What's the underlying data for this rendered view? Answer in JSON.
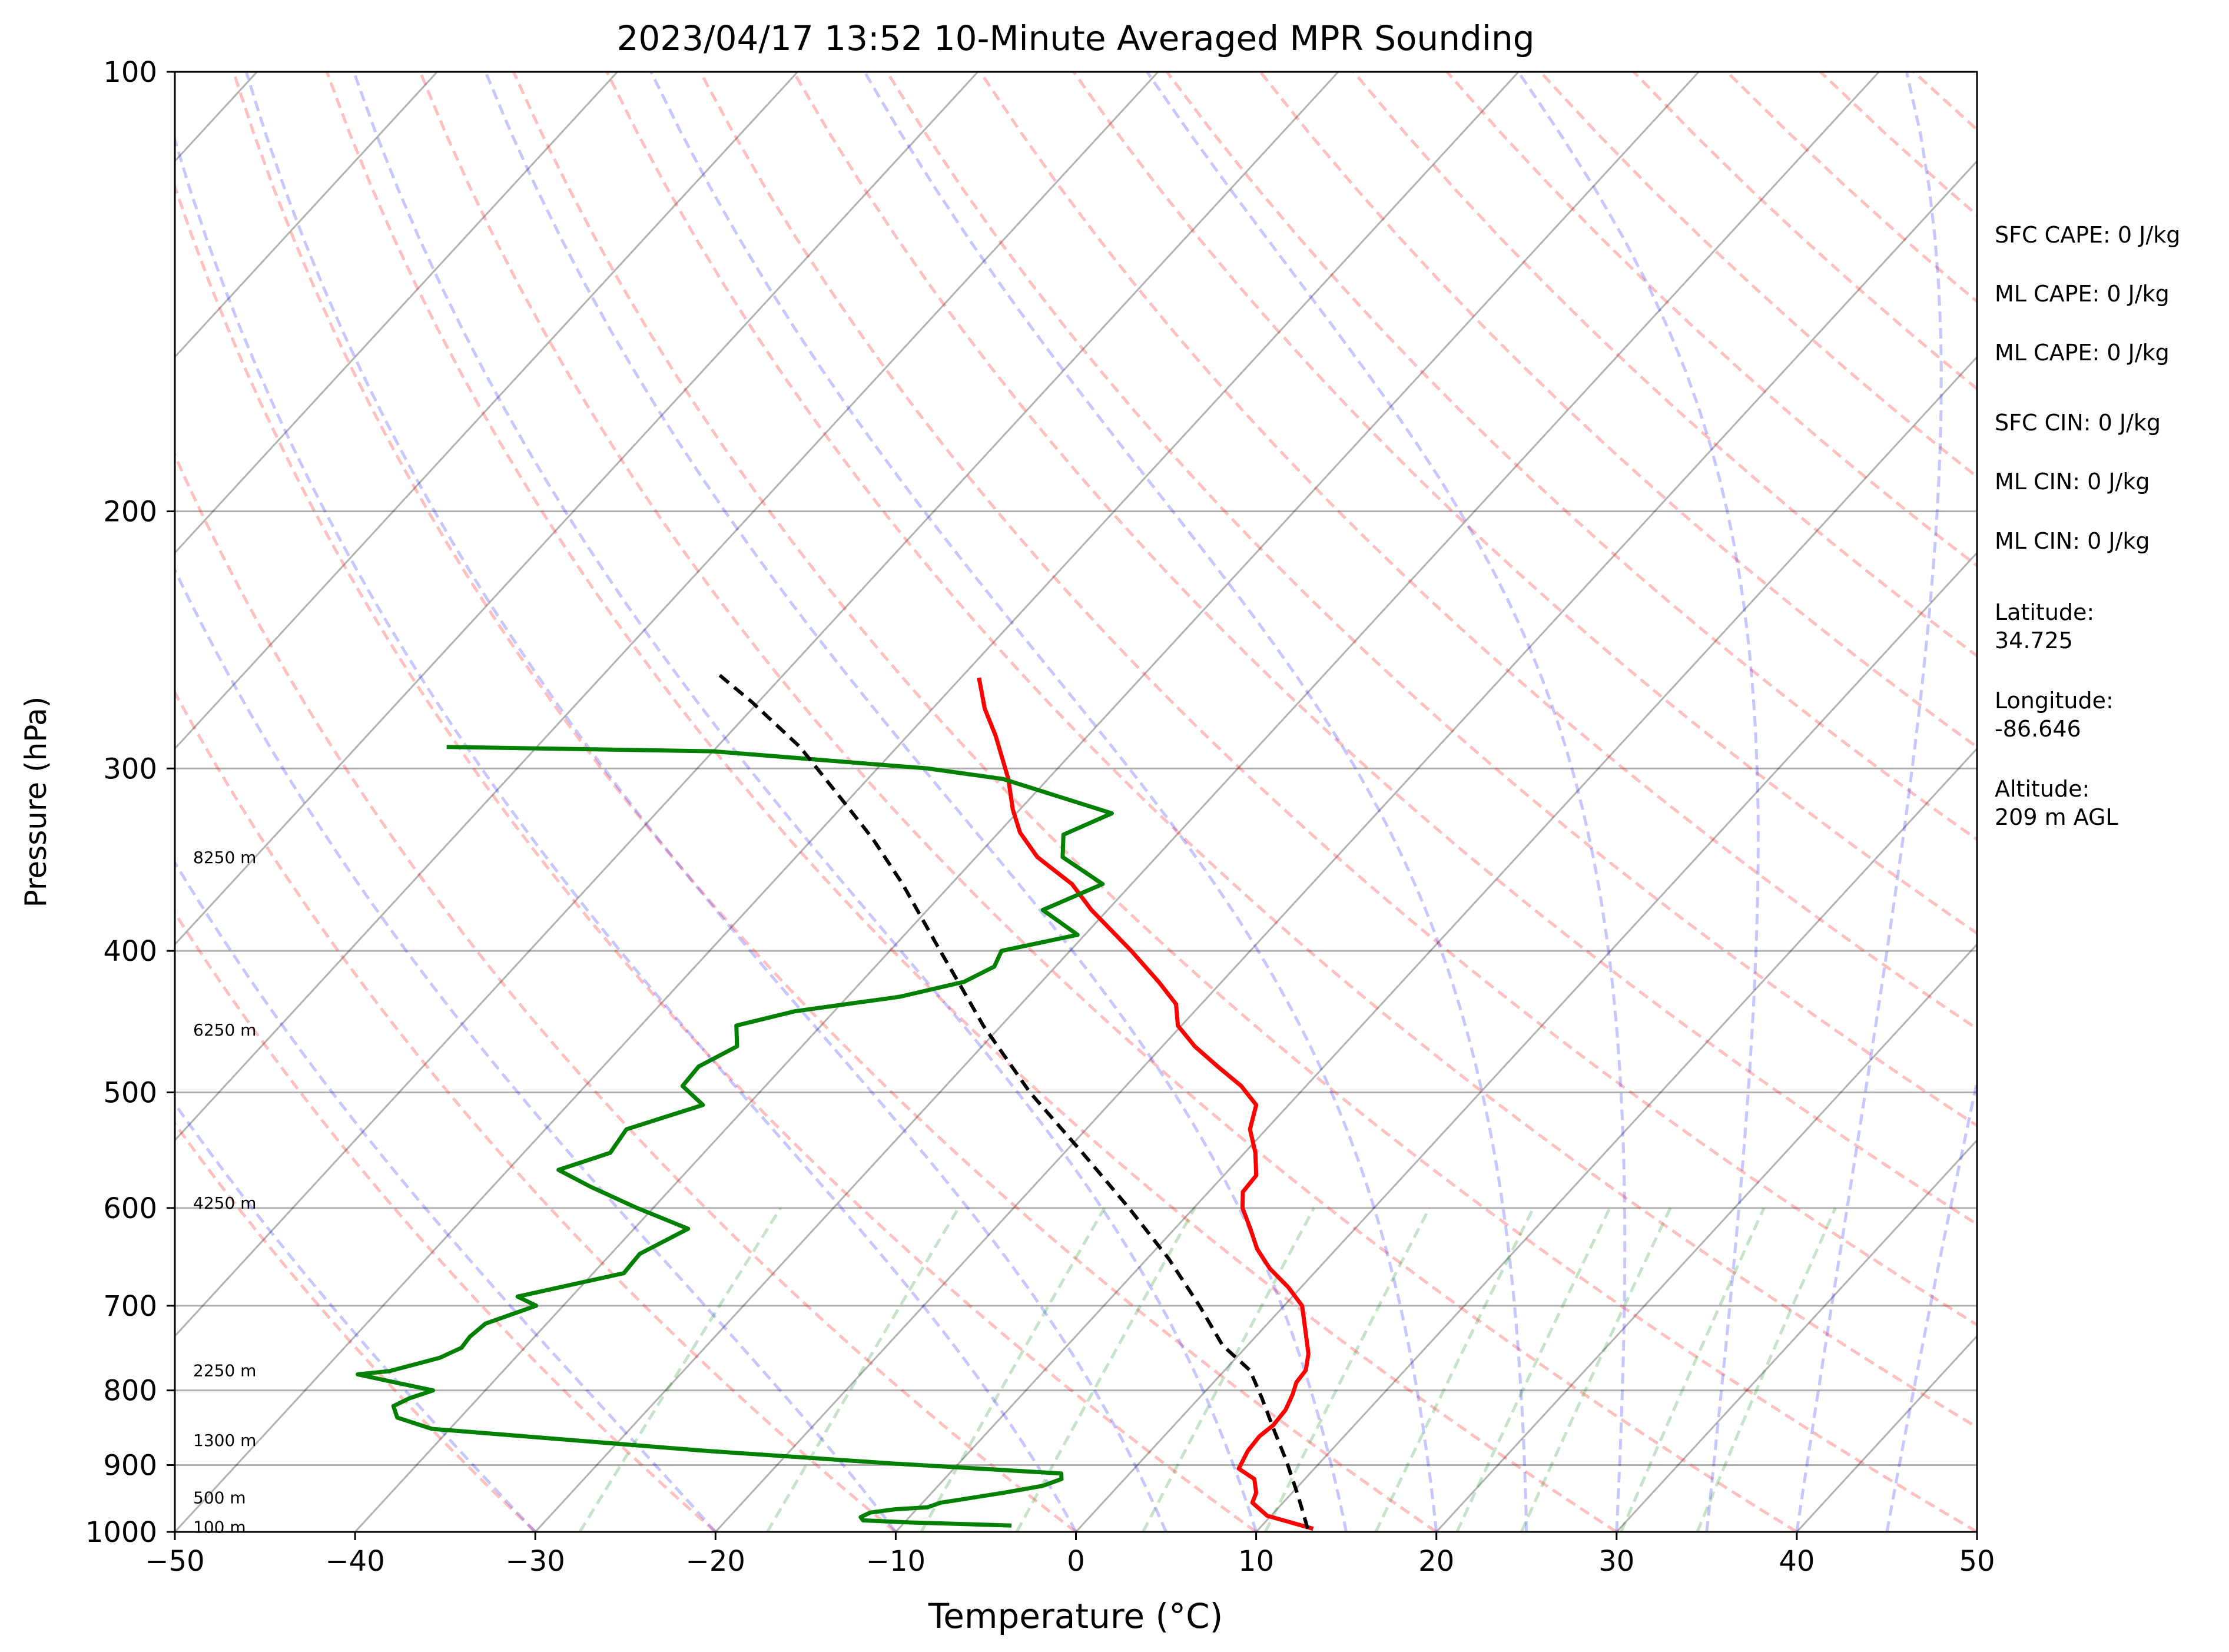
{
  "chart_data": {
    "type": "line",
    "subtype": "skew-T log-p sounding",
    "title": "2023/04/17 13:52 10-Minute Averaged MPR Sounding",
    "xlabel": "Temperature (°C)",
    "ylabel": "Pressure (hPa)",
    "xlim": [
      -50,
      50
    ],
    "ylim": [
      1000,
      100
    ],
    "y_scale": "log",
    "x_ticks": [
      -50,
      -40,
      -30,
      -20,
      -10,
      0,
      10,
      20,
      30,
      40,
      50
    ],
    "x_tick_labels": [
      "−50",
      "−40",
      "−30",
      "−20",
      "−10",
      "0",
      "10",
      "20",
      "30",
      "40",
      "50"
    ],
    "y_ticks": [
      100,
      200,
      300,
      400,
      500,
      600,
      700,
      800,
      900,
      1000
    ],
    "y_tick_labels": [
      "100",
      "200",
      "300",
      "400",
      "500",
      "600",
      "700",
      "800",
      "900",
      "1000"
    ],
    "grid": true,
    "series": [
      {
        "key": "temperature",
        "color": "#ff0000",
        "points": [
          [
            13.0,
            995
          ],
          [
            9.8,
            975
          ],
          [
            8.3,
            955
          ],
          [
            8.0,
            940
          ],
          [
            7.2,
            920
          ],
          [
            5.8,
            905
          ],
          [
            5.4,
            880
          ],
          [
            5.3,
            860
          ],
          [
            5.5,
            845
          ],
          [
            5.4,
            825
          ],
          [
            5.0,
            805
          ],
          [
            4.6,
            790
          ],
          [
            4.5,
            775
          ],
          [
            3.8,
            755
          ],
          [
            2.3,
            725
          ],
          [
            1.0,
            700
          ],
          [
            -0.7,
            680
          ],
          [
            -2.7,
            660
          ],
          [
            -4.4,
            640
          ],
          [
            -5.8,
            620
          ],
          [
            -7.3,
            600
          ],
          [
            -8.1,
            585
          ],
          [
            -8.2,
            570
          ],
          [
            -9.4,
            550
          ],
          [
            -10.9,
            530
          ],
          [
            -11.8,
            510
          ],
          [
            -13.6,
            495
          ],
          [
            -15.9,
            480
          ],
          [
            -18.2,
            465
          ],
          [
            -20.2,
            450
          ],
          [
            -21.4,
            435
          ],
          [
            -23.5,
            420
          ],
          [
            -26.6,
            400
          ],
          [
            -30.9,
            375
          ],
          [
            -33.3,
            360
          ],
          [
            -36.6,
            345
          ],
          [
            -38.8,
            332
          ],
          [
            -40.4,
            320
          ],
          [
            -42.2,
            305
          ],
          [
            -45.1,
            285
          ],
          [
            -47.1,
            273
          ],
          [
            -49.0,
            260
          ]
        ]
      },
      {
        "key": "dewpoint",
        "color": "#008000",
        "points": [
          [
            -3.9,
            990
          ],
          [
            -9.9,
            985
          ],
          [
            -12.4,
            982
          ],
          [
            -12.7,
            977
          ],
          [
            -12.4,
            970
          ],
          [
            -11.2,
            965
          ],
          [
            -9.5,
            962
          ],
          [
            -9.0,
            955
          ],
          [
            -8.0,
            950
          ],
          [
            -6.0,
            940
          ],
          [
            -4.2,
            930
          ],
          [
            -3.5,
            920
          ],
          [
            -3.8,
            912
          ],
          [
            -13.5,
            898
          ],
          [
            -24.7,
            880
          ],
          [
            -41.0,
            850
          ],
          [
            -43.5,
            835
          ],
          [
            -44.3,
            820
          ],
          [
            -43.8,
            810
          ],
          [
            -42.9,
            800
          ],
          [
            -45.9,
            788
          ],
          [
            -47.9,
            780
          ],
          [
            -46.3,
            776
          ],
          [
            -44.2,
            760
          ],
          [
            -43.5,
            748
          ],
          [
            -43.6,
            735
          ],
          [
            -43.4,
            720
          ],
          [
            -41.5,
            700
          ],
          [
            -43.0,
            690
          ],
          [
            -38.3,
            665
          ],
          [
            -38.4,
            645
          ],
          [
            -37.0,
            620
          ],
          [
            -40.9,
            600
          ],
          [
            -44.6,
            580
          ],
          [
            -47.2,
            565
          ],
          [
            -45.2,
            550
          ],
          [
            -45.5,
            530
          ],
          [
            -42.5,
            510
          ],
          [
            -44.6,
            495
          ],
          [
            -44.7,
            480
          ],
          [
            -43.6,
            465
          ],
          [
            -44.7,
            450
          ],
          [
            -42.2,
            440
          ],
          [
            -37.1,
            430
          ],
          [
            -34.3,
            420
          ],
          [
            -33.4,
            410
          ],
          [
            -33.8,
            400
          ],
          [
            -30.4,
            390
          ],
          [
            -33.6,
            375
          ],
          [
            -31.6,
            360
          ],
          [
            -35.2,
            345
          ],
          [
            -36.3,
            333
          ],
          [
            -34.7,
            322
          ],
          [
            -42.5,
            305
          ],
          [
            -47.2,
            300
          ],
          [
            -60.0,
            292
          ],
          [
            -75.0,
            290
          ]
        ]
      },
      {
        "key": "parcel",
        "color": "#000000",
        "dashed": true,
        "points": [
          [
            12.7,
            995
          ],
          [
            10.5,
            945
          ],
          [
            8.1,
            895
          ],
          [
            5.7,
            850
          ],
          [
            3.5,
            810
          ],
          [
            1.4,
            775
          ],
          [
            -1.4,
            745
          ],
          [
            -4.7,
            700
          ],
          [
            -8.8,
            650
          ],
          [
            -13.6,
            600
          ],
          [
            -19.0,
            550
          ],
          [
            -25.0,
            500
          ],
          [
            -31.0,
            450
          ],
          [
            -34.0,
            425
          ],
          [
            -37.2,
            400
          ],
          [
            -42.7,
            360
          ],
          [
            -46.7,
            335
          ],
          [
            -50.4,
            315
          ],
          [
            -55.4,
            290
          ],
          [
            -60.4,
            270
          ],
          [
            -63.8,
            258
          ]
        ]
      }
    ],
    "height_labels": [
      {
        "text": "100 m",
        "p": 992
      },
      {
        "text": "500 m",
        "p": 947
      },
      {
        "text": "1300 m",
        "p": 865
      },
      {
        "text": "2250 m",
        "p": 775
      },
      {
        "text": "4250 m",
        "p": 595
      },
      {
        "text": "6250 m",
        "p": 453
      },
      {
        "text": "8250 m",
        "p": 345
      }
    ],
    "background_lines": {
      "isotherms_color": "#000000",
      "dry_adiabats_color": "#ff0000",
      "moist_adiabats_color": "#0000ff",
      "mixing_ratio_color": "#008000"
    },
    "annotations": [
      "SFC CAPE: 0 J/kg",
      "ML CAPE: 0 J/kg",
      "ML CAPE: 0 J/kg",
      "SFC CIN: 0 J/kg",
      "ML CIN: 0 J/kg",
      "ML CIN: 0 J/kg",
      "Latitude:",
      "34.725",
      "Longitude:",
      "-86.646",
      "Altitude:",
      "209 m AGL"
    ]
  }
}
